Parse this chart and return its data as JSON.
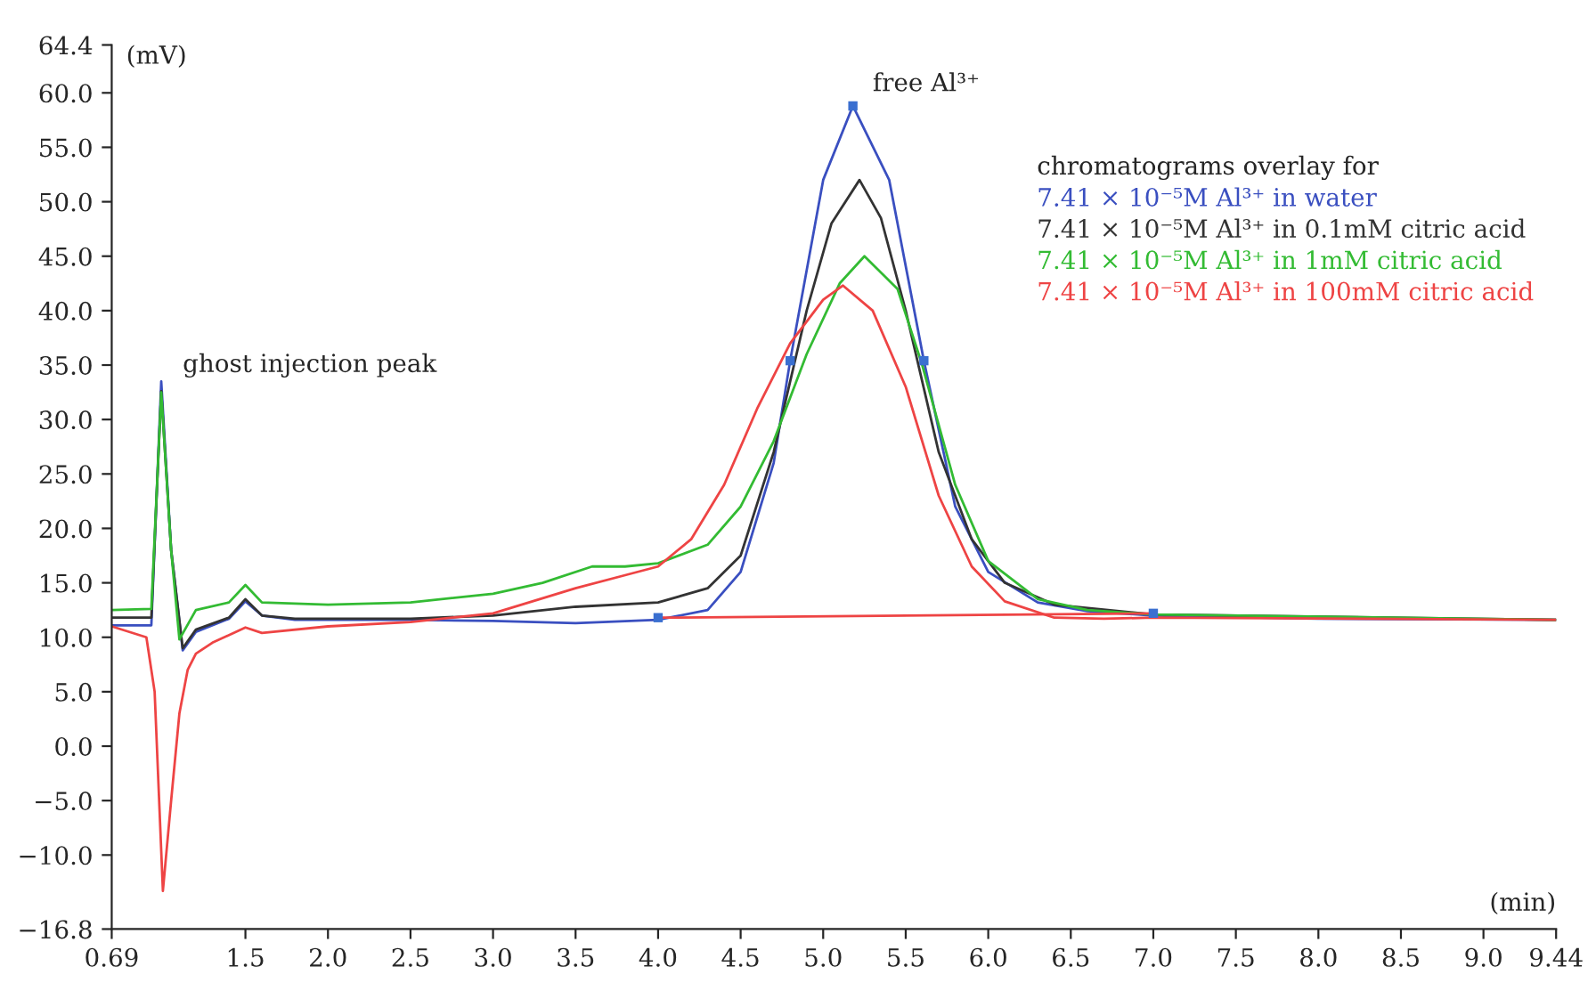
{
  "chart_data": {
    "type": "line",
    "xlabel": "(min)",
    "ylabel": "(mV)",
    "legend_title": "chromatograms overlay for",
    "legend": "top right",
    "grid": false,
    "line_style": "solid",
    "marker": "none",
    "xlim": [
      0.69,
      9.44
    ],
    "ylim": [
      -16.8,
      64.4
    ],
    "xticks": [
      0.69,
      1.5,
      {
        "value": 2.0,
        "label": "2.0"
      },
      2.5,
      {
        "value": 3.0,
        "label": "3.0"
      },
      3.5,
      {
        "value": 4.0,
        "label": "4.0"
      },
      4.5,
      {
        "value": 5.0,
        "label": "5.0"
      },
      5.5,
      {
        "value": 6.0,
        "label": "6.0"
      },
      6.5,
      {
        "value": 7.0,
        "label": "7.0"
      },
      7.5,
      {
        "value": 8.0,
        "label": "8.0"
      },
      8.5,
      {
        "value": 9.0,
        "label": "9.0"
      },
      9.44
    ],
    "yticks": [
      {
        "value": -16.8,
        "label": "−16.8"
      },
      {
        "value": -10,
        "label": "−10.0"
      },
      {
        "value": -5,
        "label": "−5.0"
      },
      {
        "value": 0,
        "label": "0.0"
      },
      {
        "value": 5,
        "label": "5.0"
      },
      {
        "value": 10,
        "label": "10.0"
      },
      {
        "value": 15,
        "label": "15.0"
      },
      {
        "value": 20,
        "label": "20.0"
      },
      {
        "value": 25,
        "label": "25.0"
      },
      {
        "value": 30,
        "label": "30.0"
      },
      {
        "value": 35,
        "label": "35.0"
      },
      {
        "value": 40,
        "label": "40.0"
      },
      {
        "value": 45,
        "label": "45.0"
      },
      {
        "value": 50,
        "label": "50.0"
      },
      {
        "value": 55,
        "label": "55.0"
      },
      {
        "value": 60,
        "label": "60.0"
      },
      64.4
    ],
    "annotations": [
      {
        "text": "ghost injection peak",
        "x": 1.0,
        "y": 33.0
      },
      {
        "text": "free Al³⁺",
        "x": 5.18,
        "y": 58.8
      }
    ],
    "series": [
      {
        "name": "7.41 × 10⁻⁵M Al³⁺ in water",
        "color": "#3a4fc0",
        "x": [
          0.69,
          0.93,
          0.99,
          1.05,
          1.12,
          1.2,
          1.4,
          1.5,
          1.6,
          1.8,
          2.5,
          3.0,
          3.5,
          4.0,
          4.3,
          4.5,
          4.7,
          4.8,
          5.0,
          5.18,
          5.4,
          5.61,
          5.8,
          6.0,
          6.3,
          6.6,
          7.0,
          8.0,
          9.44
        ],
        "values": [
          11.1,
          11.1,
          33.5,
          18.0,
          8.8,
          10.5,
          11.7,
          13.3,
          12.0,
          11.6,
          11.6,
          11.5,
          11.3,
          11.6,
          12.5,
          16.0,
          26.0,
          35.4,
          52.0,
          58.8,
          52.0,
          35.4,
          22.0,
          16.0,
          13.2,
          12.4,
          12.0,
          11.7,
          11.6
        ]
      },
      {
        "name": "7.41 × 10⁻⁵M Al³⁺ in 0.1mM citric acid",
        "color": "#333333",
        "x": [
          0.69,
          0.93,
          0.99,
          1.05,
          1.12,
          1.2,
          1.4,
          1.5,
          1.6,
          1.8,
          2.5,
          3.0,
          3.5,
          4.0,
          4.3,
          4.5,
          4.7,
          4.9,
          5.05,
          5.22,
          5.35,
          5.5,
          5.7,
          5.9,
          6.1,
          6.4,
          7.0,
          9.44
        ],
        "values": [
          11.8,
          11.8,
          32.6,
          18.0,
          9.0,
          10.7,
          11.8,
          13.5,
          12.0,
          11.7,
          11.7,
          12.0,
          12.8,
          13.2,
          14.5,
          17.5,
          27.0,
          40.0,
          48.0,
          52.0,
          48.5,
          40.0,
          27.0,
          19.0,
          15.0,
          13.0,
          12.1,
          11.6
        ]
      },
      {
        "name": "7.41 × 10⁻⁵M Al³⁺ in 1mM citric acid",
        "color": "#33bb33",
        "x": [
          0.69,
          0.93,
          0.99,
          1.05,
          1.1,
          1.2,
          1.4,
          1.5,
          1.6,
          2.0,
          2.5,
          3.0,
          3.3,
          3.6,
          3.8,
          4.0,
          4.3,
          4.5,
          4.7,
          4.9,
          5.1,
          5.25,
          5.45,
          5.6,
          5.8,
          6.0,
          6.3,
          6.6,
          7.0,
          9.44
        ],
        "values": [
          12.5,
          12.6,
          32.5,
          18.0,
          9.8,
          12.5,
          13.2,
          14.8,
          13.2,
          13.0,
          13.2,
          14.0,
          15.0,
          16.5,
          16.5,
          16.8,
          18.5,
          22.0,
          28.0,
          36.0,
          42.5,
          45.0,
          42.0,
          35.0,
          24.0,
          17.0,
          13.5,
          12.5,
          12.1,
          11.6
        ]
      },
      {
        "name": "7.41 × 10⁻⁵M Al³⁺ in 100mM citric acid",
        "color": "#ee4444",
        "x": [
          0.69,
          0.9,
          0.95,
          1.0,
          1.05,
          1.1,
          1.15,
          1.2,
          1.3,
          1.5,
          1.6,
          2.0,
          2.5,
          3.0,
          3.5,
          3.8,
          4.0,
          4.2,
          4.4,
          4.6,
          4.8,
          5.0,
          5.12,
          5.3,
          5.5,
          5.7,
          5.9,
          6.1,
          6.4,
          6.7,
          7.0,
          9.44
        ],
        "values": [
          11.0,
          10.0,
          5.0,
          -13.3,
          -5.0,
          3.0,
          7.0,
          8.5,
          9.5,
          10.9,
          10.4,
          11.0,
          11.4,
          12.2,
          14.5,
          15.7,
          16.5,
          19.0,
          24.0,
          31.0,
          37.0,
          41.0,
          42.3,
          40.0,
          33.0,
          23.0,
          16.5,
          13.3,
          11.8,
          11.7,
          11.8,
          11.6
        ]
      },
      {
        "color": "#ee4444",
        "x": [
          4.0,
          7.0
        ],
        "values": [
          11.8,
          12.2
        ]
      },
      {
        "type": "scatter",
        "marker": "square",
        "color": "#3a6fd0",
        "x": [
          4.0,
          4.8,
          5.18,
          5.61,
          7.0
        ],
        "values": [
          11.8,
          35.4,
          58.8,
          35.4,
          12.2
        ]
      }
    ]
  }
}
